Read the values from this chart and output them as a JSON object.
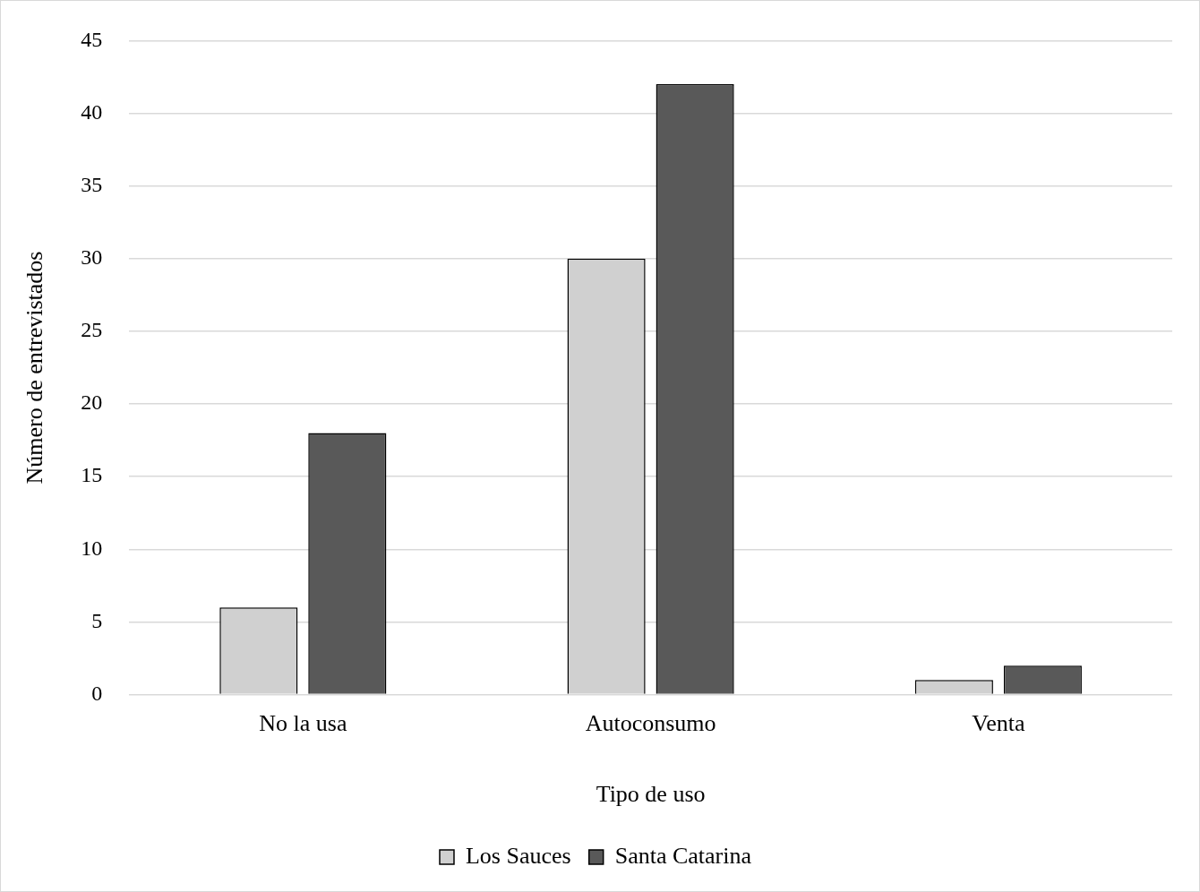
{
  "chart_data": {
    "type": "bar",
    "xlabel": "Tipo de uso",
    "ylabel": "Número de entrevistados",
    "categories": [
      "No la usa",
      "Autoconsumo",
      "Venta"
    ],
    "series": [
      {
        "name": "Los Sauces",
        "color": "#d0d0d0",
        "values": [
          6,
          30,
          1
        ]
      },
      {
        "name": "Santa Catarina",
        "color": "#595959",
        "values": [
          18,
          42,
          2
        ]
      }
    ],
    "ylim": [
      0,
      45
    ],
    "yticks": [
      0,
      5,
      10,
      15,
      20,
      25,
      30,
      35,
      40,
      45
    ],
    "grid": "y",
    "legend": "bottom"
  }
}
